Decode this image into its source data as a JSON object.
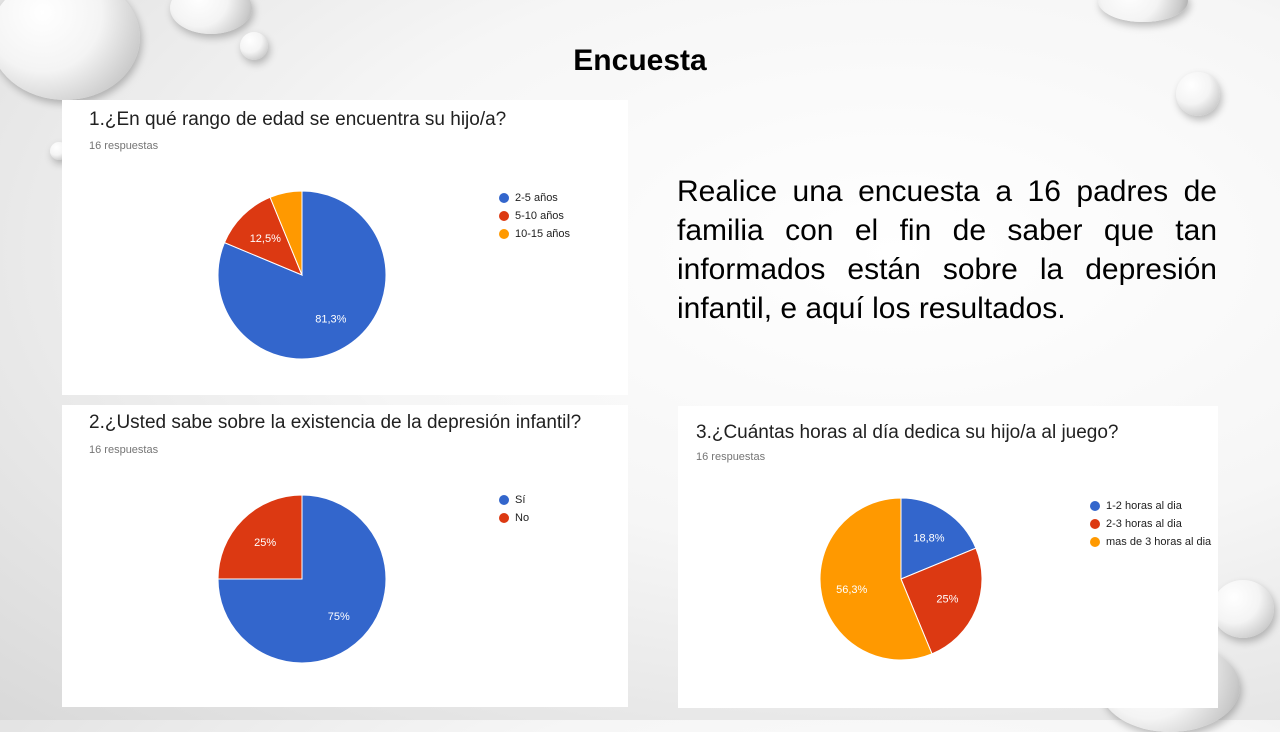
{
  "slide": {
    "title": "Encuesta",
    "intro": "Realice una encuesta a 16 padres de familia con el fin de saber que tan informados están sobre la depresión infantil, e aquí los resultados."
  },
  "colors": {
    "blue": "#3366cc",
    "red": "#dc3912",
    "orange": "#ff9900"
  },
  "chart_data": [
    {
      "type": "pie",
      "title": "1.¿En qué rango de edad se encuentra su hijo/a?",
      "subtitle": "16 respuestas",
      "categories": [
        "2-5 años",
        "5-10 años",
        "10-15 años"
      ],
      "values": [
        81.3,
        12.5,
        6.2
      ],
      "data_labels": [
        "81,3%",
        "12,5%",
        ""
      ],
      "colors": [
        "#3366cc",
        "#dc3912",
        "#ff9900"
      ],
      "legend": "right"
    },
    {
      "type": "pie",
      "title": "2.¿Usted sabe sobre la existencia de la depresión infantil?",
      "subtitle": "16 respuestas",
      "categories": [
        "Sí",
        "No"
      ],
      "values": [
        75,
        25
      ],
      "data_labels": [
        "75%",
        "25%"
      ],
      "colors": [
        "#3366cc",
        "#dc3912"
      ],
      "legend": "right"
    },
    {
      "type": "pie",
      "title": "3.¿Cuántas horas al día dedica su hijo/a al juego?",
      "subtitle": "16 respuestas",
      "categories": [
        "1-2 horas al dia",
        "2-3 horas al dia",
        "mas de 3 horas al dia"
      ],
      "values": [
        18.8,
        25,
        56.3
      ],
      "data_labels": [
        "18,8%",
        "25%",
        "56,3%"
      ],
      "colors": [
        "#3366cc",
        "#dc3912",
        "#ff9900"
      ],
      "legend": "right"
    }
  ]
}
